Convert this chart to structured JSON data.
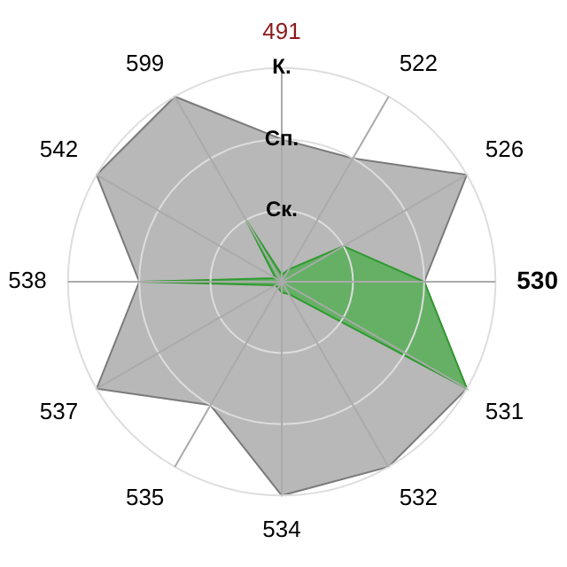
{
  "chart_data": {
    "type": "radar",
    "categories": [
      "491",
      "522",
      "526",
      "530",
      "531",
      "532",
      "534",
      "535",
      "537",
      "538",
      "542",
      "599"
    ],
    "series": [
      {
        "color": "#b8b8b8",
        "values": [
          2,
          2,
          3,
          2,
          3,
          3,
          3,
          2,
          3,
          2,
          3,
          3
        ]
      },
      {
        "color": "#66b066",
        "values": [
          0.1,
          0.2,
          1,
          2,
          3,
          0.2,
          0.15,
          0.1,
          0.1,
          2,
          0.1,
          1
        ]
      }
    ],
    "ylim": [
      0,
      3
    ],
    "yticks": [
      {
        "value": 1,
        "label": "Ск."
      },
      {
        "value": 2,
        "label": "Сп."
      },
      {
        "value": 3,
        "label": "К."
      }
    ],
    "grid": true,
    "legend": false
  }
}
